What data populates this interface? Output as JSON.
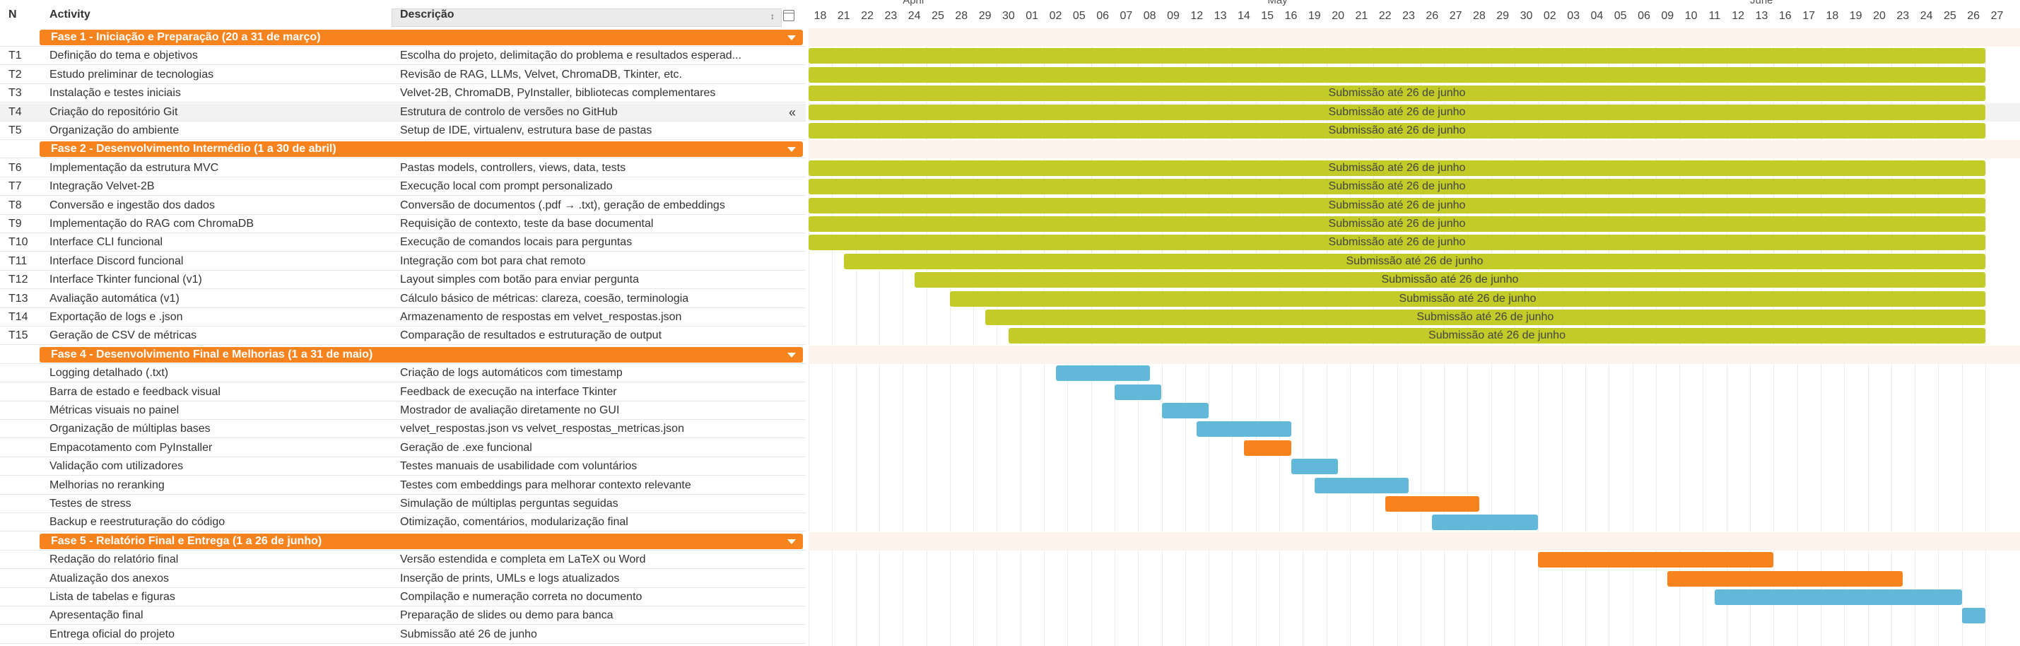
{
  "header": {
    "n": "N",
    "activity": "Activity",
    "description": "Descrição",
    "sort_icon": "↕"
  },
  "months": [
    "April",
    "May",
    "June"
  ],
  "days": [
    "18",
    "21",
    "22",
    "23",
    "24",
    "25",
    "28",
    "29",
    "30",
    "01",
    "02",
    "05",
    "06",
    "07",
    "08",
    "09",
    "12",
    "13",
    "14",
    "15",
    "16",
    "19",
    "20",
    "21",
    "22",
    "23",
    "26",
    "27",
    "28",
    "29",
    "30",
    "02",
    "03",
    "04",
    "05",
    "06",
    "09",
    "10",
    "11",
    "12",
    "13",
    "16",
    "17",
    "18",
    "19",
    "20",
    "23",
    "24",
    "25",
    "26",
    "27"
  ],
  "rows": [
    {
      "type": "phase",
      "label": "Fase 1 - Iniciação e Preparação (20 a 31 de março)"
    },
    {
      "type": "task",
      "n": "T1",
      "activity": "Definição do tema e objetivos",
      "desc": " Escolha do projeto, delimitação do problema e resultados esperad...",
      "bar": {
        "start": 0,
        "end": 50,
        "color": "green",
        "label": ""
      }
    },
    {
      "type": "task",
      "n": "T2",
      "activity": "Estudo preliminar de tecnologias",
      "desc": "Revisão de RAG, LLMs, Velvet, ChromaDB, Tkinter, etc.",
      "bar": {
        "start": 0,
        "end": 50,
        "color": "green",
        "label": ""
      }
    },
    {
      "type": "task",
      "n": "T3",
      "activity": "Instalação e testes iniciais",
      "desc": "Velvet-2B, ChromaDB, PyInstaller, bibliotecas complementares",
      "bar": {
        "start": 0,
        "end": 50,
        "color": "green",
        "label": "Submissão até 26 de junho"
      }
    },
    {
      "type": "task",
      "n": "T4",
      "activity": "Criação do repositório Git",
      "desc": "Estrutura de controlo de versões no GitHub",
      "alt": true,
      "bar": {
        "start": 0,
        "end": 50,
        "color": "green",
        "label": "Submissão até 26 de junho"
      }
    },
    {
      "type": "task",
      "n": "T5",
      "activity": "Organização do ambiente",
      "desc": "Setup de IDE, virtualenv, estrutura base de pastas",
      "bar": {
        "start": 0,
        "end": 50,
        "color": "green",
        "label": "Submissão até 26 de junho"
      }
    },
    {
      "type": "phase",
      "label": "Fase 2 - Desenvolvimento Intermédio (1 a 30 de abril)"
    },
    {
      "type": "task",
      "n": "T6",
      "activity": " Implementação da estrutura MVC",
      "desc": "Pastas models, controllers, views, data, tests",
      "bar": {
        "start": 0,
        "end": 50,
        "color": "green",
        "label": "Submissão até 26 de junho"
      }
    },
    {
      "type": "task",
      "n": "T7",
      "activity": "Integração Velvet-2B",
      "desc": "Execução local com prompt personalizado",
      "bar": {
        "start": 0,
        "end": 50,
        "color": "green",
        "label": "Submissão até 26 de junho"
      }
    },
    {
      "type": "task",
      "n": "T8",
      "activity": "Conversão e ingestão dos dados",
      "desc": "Conversão de documentos (.pdf → .txt), geração de embeddings",
      "bar": {
        "start": 0,
        "end": 50,
        "color": "green",
        "label": "Submissão até 26 de junho"
      }
    },
    {
      "type": "task",
      "n": "T9",
      "activity": "Implementação do RAG com ChromaDB",
      "desc": "Requisição de contexto, teste da base documental",
      "bar": {
        "start": 0,
        "end": 50,
        "color": "green",
        "label": "Submissão até 26 de junho"
      }
    },
    {
      "type": "task",
      "n": "T10",
      "activity": "Interface CLI funcional",
      "desc": "Execução de comandos locais para perguntas",
      "bar": {
        "start": 0,
        "end": 50,
        "color": "green",
        "label": "Submissão até 26 de junho"
      }
    },
    {
      "type": "task",
      "n": "T11",
      "activity": "Interface Discord funcional",
      "desc": "Integração com bot para chat remoto",
      "bar": {
        "start": 1.5,
        "end": 50,
        "color": "green",
        "label": "Submissão até 26 de junho"
      }
    },
    {
      "type": "task",
      "n": "T12",
      "activity": "Interface Tkinter funcional (v1)",
      "desc": "Layout simples com botão para enviar pergunta",
      "bar": {
        "start": 4.5,
        "end": 50,
        "color": "green",
        "label": "Submissão até 26 de junho"
      }
    },
    {
      "type": "task",
      "n": "T13",
      "activity": " Avaliação automática (v1)",
      "desc": "Cálculo básico de métricas: clareza, coesão, terminologia",
      "bar": {
        "start": 6,
        "end": 50,
        "color": "green",
        "label": "Submissão até 26 de junho"
      }
    },
    {
      "type": "task",
      "n": "T14",
      "activity": "Exportação de logs e .json",
      "desc": "Armazenamento de respostas em velvet_respostas.json",
      "bar": {
        "start": 7.5,
        "end": 50,
        "color": "green",
        "label": "Submissão até 26 de junho"
      }
    },
    {
      "type": "task",
      "n": "T15",
      "activity": "Geração de CSV de métricas",
      "desc": "Comparação de resultados e estruturação de output",
      "bar": {
        "start": 8.5,
        "end": 50,
        "color": "green",
        "label": "Submissão até 26 de junho"
      }
    },
    {
      "type": "phase",
      "label": "Fase 4 - Desenvolvimento Final e Melhorias (1 a 31 de maio)"
    },
    {
      "type": "task",
      "n": "",
      "activity": " Logging detalhado (.txt)",
      "desc": "Criação de logs automáticos com timestamp",
      "bar": {
        "start": 10.5,
        "end": 14.5,
        "color": "blue",
        "label": ""
      }
    },
    {
      "type": "task",
      "n": "",
      "activity": "Barra de estado e feedback visual",
      "desc": "Feedback de execução na interface Tkinter",
      "bar": {
        "start": 13,
        "end": 15,
        "color": "blue",
        "label": ""
      }
    },
    {
      "type": "task",
      "n": "",
      "activity": "Métricas visuais no painel",
      "desc": "Mostrador de avaliação diretamente no GUI",
      "bar": {
        "start": 15,
        "end": 17,
        "color": "blue",
        "label": ""
      }
    },
    {
      "type": "task",
      "n": "",
      "activity": "Organização de múltiplas bases",
      "desc": "velvet_respostas.json vs velvet_respostas_metricas.json",
      "bar": {
        "start": 16.5,
        "end": 20.5,
        "color": "blue",
        "label": ""
      }
    },
    {
      "type": "task",
      "n": "",
      "activity": "Empacotamento com PyInstaller",
      "desc": "Geração de .exe funcional",
      "bar": {
        "start": 18.5,
        "end": 20.5,
        "color": "orange",
        "label": ""
      }
    },
    {
      "type": "task",
      "n": "",
      "activity": "Validação com utilizadores",
      "desc": "Testes manuais de usabilidade com voluntários",
      "bar": {
        "start": 20.5,
        "end": 22.5,
        "color": "blue",
        "label": ""
      }
    },
    {
      "type": "task",
      "n": "",
      "activity": "Melhorias no reranking",
      "desc": "Testes com embeddings para melhorar contexto relevante",
      "bar": {
        "start": 21.5,
        "end": 25.5,
        "color": "blue",
        "label": ""
      }
    },
    {
      "type": "task",
      "n": "",
      "activity": "Testes de stress",
      "desc": "Simulação de múltiplas perguntas seguidas",
      "bar": {
        "start": 24.5,
        "end": 28.5,
        "color": "orange",
        "label": ""
      }
    },
    {
      "type": "task",
      "n": "",
      "activity": "Backup e reestruturação do código",
      "desc": "Otimização, comentários, modularização final",
      "bar": {
        "start": 26.5,
        "end": 31,
        "color": "blue",
        "label": ""
      }
    },
    {
      "type": "phase",
      "label": "Fase 5 - Relatório Final e Entrega (1 a 26 de junho)"
    },
    {
      "type": "task",
      "n": "",
      "activity": "Redação do relatório final",
      "desc": "Versão estendida e completa em LaTeX ou Word",
      "bar": {
        "start": 31,
        "end": 41,
        "color": "orange",
        "label": ""
      }
    },
    {
      "type": "task",
      "n": "",
      "activity": "Atualização dos anexos",
      "desc": "Inserção de prints, UMLs e logs atualizados",
      "bar": {
        "start": 36.5,
        "end": 46.5,
        "color": "orange",
        "label": ""
      }
    },
    {
      "type": "task",
      "n": "",
      "activity": "Lista de tabelas e figuras",
      "desc": "Compilação e numeração correta no documento",
      "bar": {
        "start": 38.5,
        "end": 49,
        "color": "blue",
        "label": ""
      }
    },
    {
      "type": "task",
      "n": "",
      "activity": "Apresentação final",
      "desc": "Preparação de slides ou demo para banca",
      "bar": {
        "start": 49,
        "end": 50,
        "color": "blue",
        "label": ""
      }
    },
    {
      "type": "task",
      "n": "",
      "activity": "Entrega oficial do projeto",
      "desc": "Submissão até 26 de junho"
    }
  ]
}
